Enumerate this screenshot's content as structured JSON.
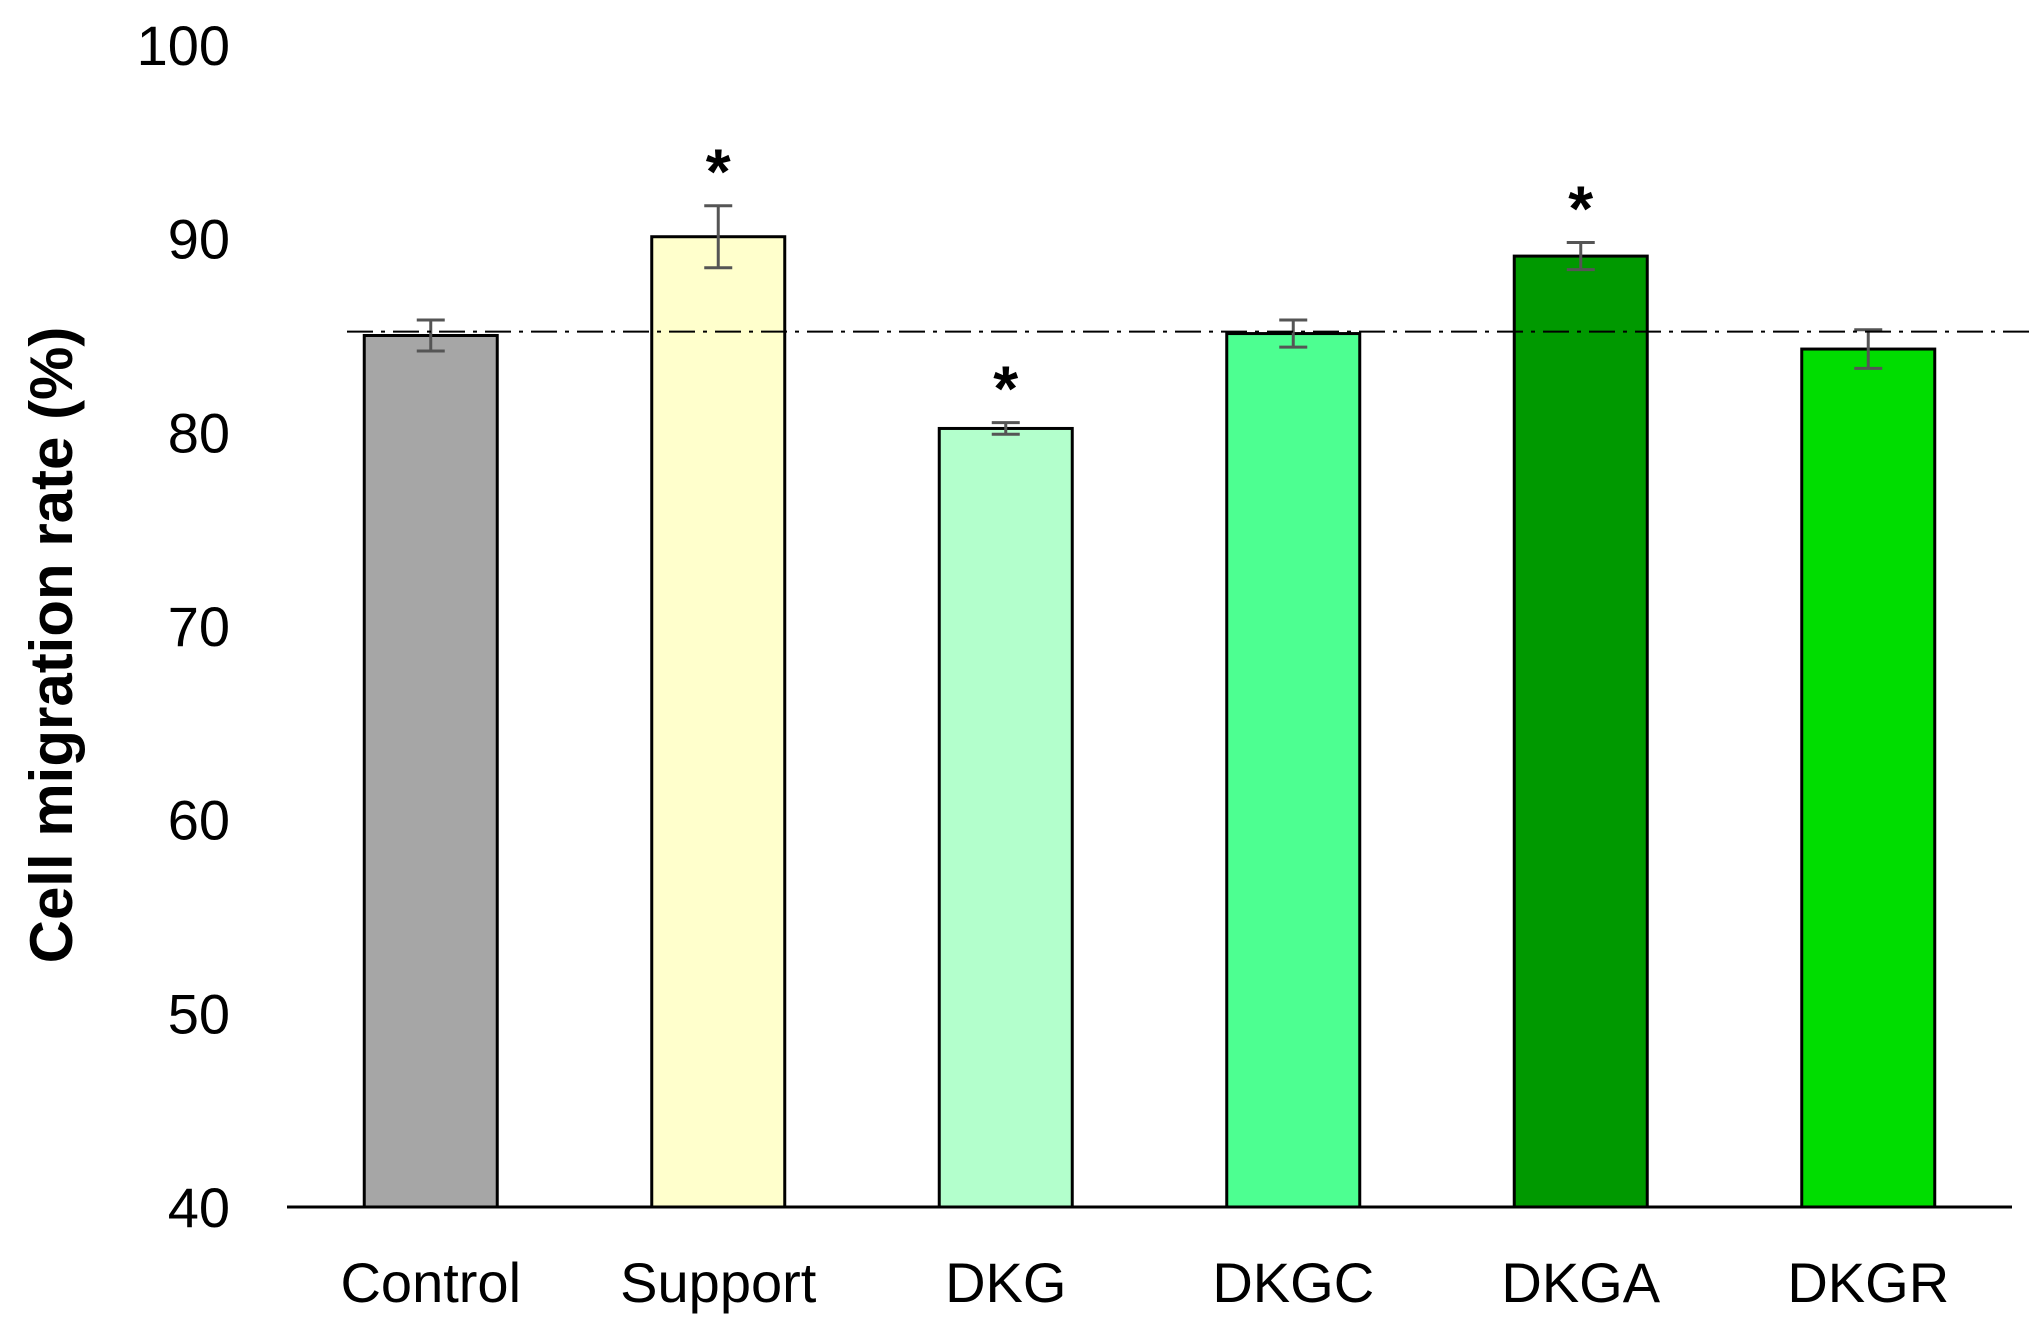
{
  "chart_data": {
    "type": "bar",
    "title": "",
    "xlabel": "",
    "ylabel": "Cell migration rate (%)",
    "ylim": [
      40,
      100
    ],
    "yticks": [
      40,
      50,
      60,
      70,
      80,
      90,
      100
    ],
    "categories": [
      "Control",
      "Support",
      "DKG",
      "DKGC",
      "DKGA",
      "DKGR"
    ],
    "values": [
      85.0,
      90.1,
      80.2,
      85.1,
      89.1,
      84.3
    ],
    "errors": [
      0.8,
      1.6,
      0.3,
      0.7,
      0.7,
      1.0
    ],
    "significance": [
      "",
      "*",
      "*",
      "",
      "*",
      ""
    ],
    "colors": [
      "#a6a6a6",
      "#ffffcc",
      "#b3ffcc",
      "#4dff91",
      "#009900",
      "#00dd00"
    ],
    "reference_line": 85.2,
    "grid": false
  }
}
